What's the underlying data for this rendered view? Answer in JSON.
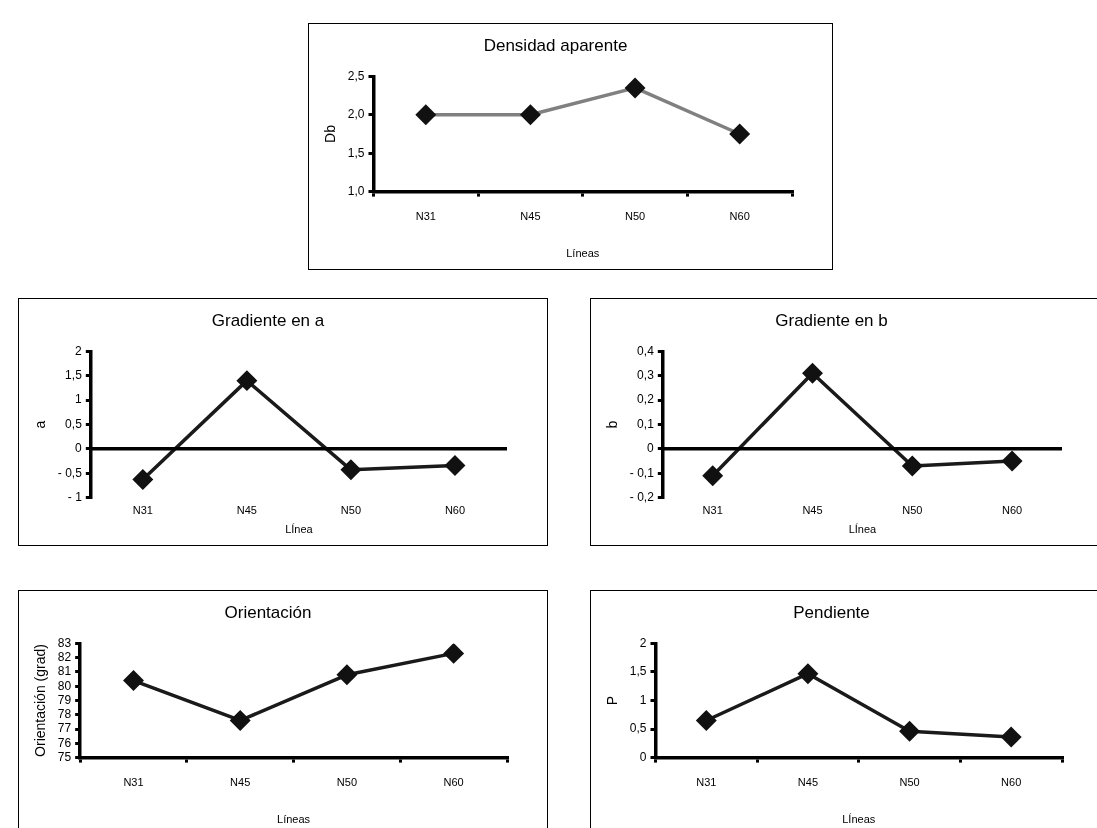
{
  "chart_data": [
    {
      "type": "line",
      "title": "Densidad aparente",
      "xlabel": "Líneas",
      "ylabel": "Db",
      "categories": [
        "N31",
        "N45",
        "N50",
        "N60"
      ],
      "series": [
        {
          "color": "#808080",
          "values": [
            2.0,
            2.0,
            2.35,
            1.75
          ]
        }
      ],
      "ylim": [
        1.0,
        2.5
      ],
      "yticks": [
        {
          "value": 1.0,
          "label": "1,0"
        },
        {
          "value": 1.5,
          "label": "1,5"
        },
        {
          "value": 2.0,
          "label": "2,0"
        },
        {
          "value": 2.5,
          "label": "2,5"
        }
      ],
      "grid": false,
      "legend": false,
      "marker": "diamond",
      "line_style": "solid"
    },
    {
      "type": "line",
      "title": "Gradiente en a",
      "xlabel": "LÍnea",
      "ylabel": "a",
      "categories": [
        "N31",
        "N45",
        "N50",
        "N60"
      ],
      "series": [
        {
          "color": "#1a1a1a",
          "values": [
            -0.63,
            1.4,
            -0.43,
            -0.34
          ]
        }
      ],
      "ref_lines": [
        {
          "axis": "y",
          "value": 0,
          "color": "#000000"
        }
      ],
      "ylim": [
        -1,
        2
      ],
      "yticks": [
        {
          "value": -1,
          "label": "- 1"
        },
        {
          "value": -0.5,
          "label": "- 0,5"
        },
        0,
        {
          "value": 0.5,
          "label": "0,5"
        },
        1,
        {
          "value": 1.5,
          "label": "1,5"
        },
        2
      ],
      "grid": false,
      "legend": false,
      "marker": "diamond",
      "line_style": "solid"
    },
    {
      "type": "line",
      "title": "Gradiente en b",
      "xlabel": "LÍnea",
      "ylabel": "b",
      "categories": [
        "N31",
        "N45",
        "N50",
        "N60"
      ],
      "series": [
        {
          "color": "#1a1a1a",
          "values": [
            -0.11,
            0.31,
            -0.07,
            -0.05
          ]
        }
      ],
      "ref_lines": [
        {
          "axis": "y",
          "value": 0,
          "color": "#000000"
        }
      ],
      "ylim": [
        -0.2,
        0.4
      ],
      "yticks": [
        {
          "value": -0.2,
          "label": "- 0,2"
        },
        {
          "value": -0.1,
          "label": "- 0,1"
        },
        0,
        {
          "value": 0.1,
          "label": "0,1"
        },
        {
          "value": 0.2,
          "label": "0,2"
        },
        {
          "value": 0.3,
          "label": "0,3"
        },
        {
          "value": 0.4,
          "label": "0,4"
        }
      ],
      "grid": false,
      "legend": false,
      "marker": "diamond",
      "line_style": "solid"
    },
    {
      "type": "line",
      "title": "Orientación",
      "xlabel": "Líneas",
      "ylabel": "Orientación (grad)",
      "categories": [
        "N31",
        "N45",
        "N50",
        "N60"
      ],
      "series": [
        {
          "color": "#1a1a1a",
          "values": [
            80.4,
            77.6,
            80.8,
            82.3
          ]
        }
      ],
      "ylim": [
        75,
        83
      ],
      "yticks": [
        75,
        76,
        77,
        78,
        79,
        80,
        81,
        82,
        83
      ],
      "grid": false,
      "legend": false,
      "marker": "diamond",
      "line_style": "solid"
    },
    {
      "type": "line",
      "title": "Pendiente",
      "xlabel": "LÍneas",
      "ylabel": "P",
      "categories": [
        "N31",
        "N45",
        "N50",
        "N60"
      ],
      "series": [
        {
          "color": "#1a1a1a",
          "values": [
            0.65,
            1.47,
            0.46,
            0.36
          ]
        }
      ],
      "ylim": [
        0,
        2
      ],
      "yticks": [
        0,
        {
          "value": 0.5,
          "label": "0,5"
        },
        1,
        {
          "value": 1.5,
          "label": "1,5"
        },
        2
      ],
      "grid": false,
      "legend": false,
      "marker": "diamond",
      "line_style": "solid"
    }
  ]
}
